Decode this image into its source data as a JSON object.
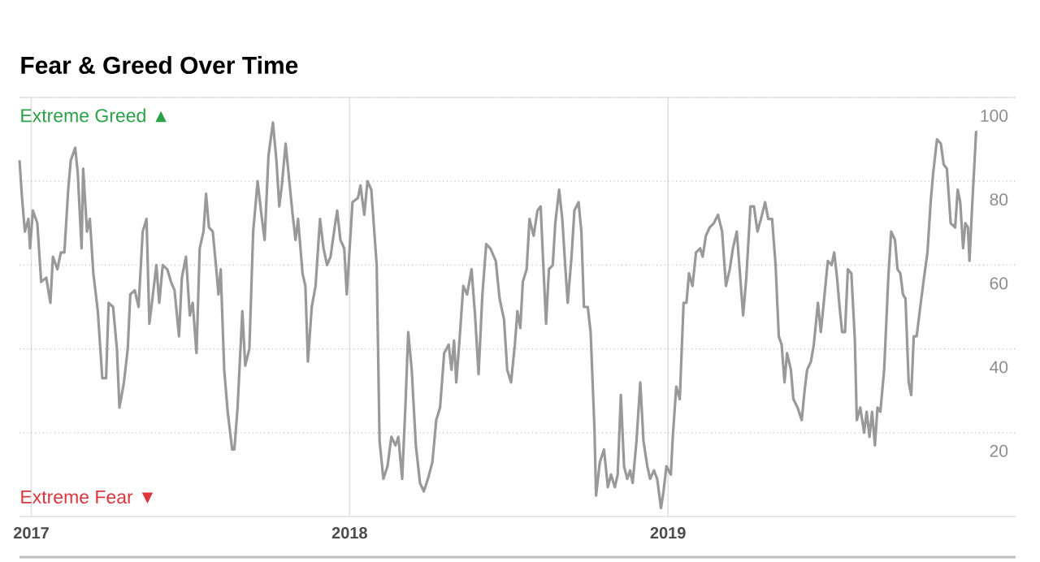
{
  "chart_data": {
    "type": "line",
    "title": "Fear & Greed Over Time",
    "annotations": [
      "Extreme Greed ▲",
      "Extreme Fear ▼"
    ],
    "xlim": [
      2016.963,
      2020.092
    ],
    "xticks": [
      2017,
      2018,
      2019
    ],
    "ylim": [
      0,
      100
    ],
    "yticks": [
      20,
      40,
      60,
      80,
      100
    ],
    "grid": true,
    "series": [
      {
        "color": "#999999",
        "x": [
          2016.963,
          2016.971,
          2016.98,
          2016.991,
          2016.996,
          2017.005,
          2017.019,
          2017.031,
          2017.047,
          2017.06,
          2017.068,
          2017.082,
          2017.093,
          2017.104,
          2017.116,
          2017.124,
          2017.138,
          2017.146,
          2017.158,
          2017.163,
          2017.175,
          2017.184,
          2017.195,
          2017.209,
          2017.223,
          2017.235,
          2017.243,
          2017.257,
          2017.269,
          2017.277,
          2017.291,
          2017.303,
          2017.311,
          2017.325,
          2017.337,
          2017.35,
          2017.362,
          2017.371,
          2017.379,
          2017.393,
          2017.402,
          2017.413,
          2017.427,
          2017.439,
          2017.45,
          2017.464,
          2017.473,
          2017.486,
          2017.498,
          2017.507,
          2017.519,
          2017.529,
          2017.541,
          2017.549,
          2017.558,
          2017.57,
          2017.58,
          2017.588,
          2017.595,
          2017.606,
          2017.617,
          2017.631,
          2017.638,
          2017.648,
          2017.663,
          2017.672,
          2017.685,
          2017.697,
          2017.711,
          2017.723,
          2017.733,
          2017.745,
          2017.759,
          2017.77,
          2017.779,
          2017.787,
          2017.799,
          2017.808,
          2017.821,
          2017.83,
          2017.838,
          2017.852,
          2017.861,
          2017.869,
          2017.881,
          2017.893,
          2017.907,
          2017.918,
          2017.929,
          2017.94,
          2017.953,
          2017.961,
          2017.971,
          2017.983,
          2017.991,
          2018.009,
          2018.026,
          2018.034,
          2018.046,
          2018.056,
          2018.068,
          2018.085,
          2018.094,
          2018.106,
          2018.119,
          2018.131,
          2018.144,
          2018.153,
          2018.165,
          2018.175,
          2018.184,
          2018.195,
          2018.208,
          2018.221,
          2018.233,
          2018.246,
          2018.26,
          2018.272,
          2018.284,
          2018.297,
          2018.311,
          2018.32,
          2018.328,
          2018.335,
          2018.345,
          2018.357,
          2018.369,
          2018.383,
          2018.394,
          2018.405,
          2018.417,
          2018.429,
          2018.442,
          2018.459,
          2018.471,
          2018.485,
          2018.495,
          2018.507,
          2018.519,
          2018.527,
          2018.536,
          2018.544,
          2018.556,
          2018.565,
          2018.578,
          2018.59,
          2018.6,
          2018.609,
          2018.617,
          2018.626,
          2018.638,
          2018.646,
          2018.658,
          2018.668,
          2018.677,
          2018.685,
          2018.697,
          2018.706,
          2018.719,
          2018.728,
          2018.736,
          2018.748,
          2018.757,
          2018.769,
          2018.774,
          2018.786,
          2018.799,
          2018.811,
          2018.821,
          2018.833,
          2018.842,
          2018.852,
          2018.862,
          2018.872,
          2018.881,
          2018.889,
          2018.901,
          2018.913,
          2018.923,
          2018.935,
          2018.944,
          2018.956,
          2018.966,
          2018.978,
          2018.986,
          2018.995,
          2019.009,
          2019.015,
          2019.026,
          2019.037,
          2019.049,
          2019.058,
          2019.066,
          2019.077,
          2019.088,
          2019.101,
          2019.109,
          2019.119,
          2019.131,
          2019.144,
          2019.157,
          2019.17,
          2019.182,
          2019.194,
          2019.204,
          2019.216,
          2019.224,
          2019.236,
          2019.246,
          2019.259,
          2019.27,
          2019.281,
          2019.292,
          2019.305,
          2019.315,
          2019.327,
          2019.338,
          2019.348,
          2019.357,
          2019.366,
          2019.374,
          2019.386,
          2019.394,
          2019.407,
          2019.42,
          2019.429,
          2019.437,
          2019.449,
          2019.458,
          2019.471,
          2019.48,
          2019.488,
          2019.502,
          2019.514,
          2019.522,
          2019.531,
          2019.539,
          2019.547,
          2019.556,
          2019.565,
          2019.576,
          2019.587,
          2019.593,
          2019.604,
          2019.616,
          2019.624,
          2019.633,
          2019.641,
          2019.65,
          2019.658,
          2019.667,
          2019.679,
          2019.692,
          2019.701,
          2019.713,
          2019.721,
          2019.73,
          2019.738,
          2019.746,
          2019.756,
          2019.764,
          2019.772,
          2019.781,
          2019.794,
          2019.806,
          2019.815,
          2019.825,
          2019.833,
          2019.845,
          2019.857,
          2019.866,
          2019.876,
          2019.888,
          2019.902,
          2019.91,
          2019.918,
          2019.927,
          2019.934,
          2019.942,
          2019.947,
          2019.956,
          2019.968
        ],
        "values": [
          85,
          76,
          68,
          71,
          64,
          73,
          70,
          56,
          57,
          51,
          62,
          59,
          63,
          63,
          78,
          85,
          88,
          82,
          64,
          83,
          68,
          71,
          58,
          49,
          33,
          33,
          51,
          50,
          40,
          26,
          32,
          40,
          53,
          54,
          50,
          68,
          71,
          46,
          51,
          60,
          51,
          60,
          59,
          56,
          54,
          43,
          57,
          62,
          48,
          51,
          39,
          64,
          68,
          77,
          69,
          68,
          60,
          53,
          59,
          35,
          25,
          16,
          16,
          26,
          49,
          36,
          40,
          68,
          80,
          72,
          66,
          86,
          94,
          85,
          74,
          79,
          89,
          82,
          72,
          66,
          71,
          58,
          55,
          37,
          50,
          55,
          71,
          64,
          60,
          62,
          69,
          73,
          66,
          64,
          53,
          75,
          76,
          79,
          72,
          80,
          78,
          60,
          18,
          9,
          12,
          19,
          17,
          19,
          9,
          26,
          44,
          35,
          17,
          8,
          6,
          9,
          13,
          23,
          26,
          39,
          41,
          35,
          42,
          32,
          42,
          55,
          53,
          59,
          48,
          34,
          53,
          65,
          64,
          61,
          52,
          47,
          35,
          32,
          41,
          49,
          45,
          56,
          59,
          71,
          67,
          73,
          74,
          59,
          46,
          59,
          60,
          70,
          78,
          71,
          60,
          51,
          62,
          73,
          75,
          68,
          50,
          50,
          44,
          21,
          5,
          13,
          16,
          7,
          10,
          7,
          10,
          29,
          12,
          9,
          11,
          8,
          18,
          32,
          18,
          12,
          9,
          11,
          9,
          2,
          6,
          12,
          10,
          19,
          31,
          28,
          51,
          51,
          58,
          55,
          63,
          64,
          62,
          67,
          69,
          70,
          72,
          68,
          55,
          59,
          64,
          68,
          60,
          48,
          57,
          74,
          74,
          68,
          71,
          75,
          71,
          71,
          60,
          43,
          41,
          32,
          39,
          35,
          28,
          26,
          23,
          30,
          35,
          37,
          41,
          51,
          44,
          50,
          61,
          60,
          63,
          57,
          50,
          44,
          44,
          59,
          58,
          42,
          23,
          26,
          20,
          25,
          19,
          25,
          17,
          26,
          25,
          35,
          57,
          68,
          66,
          59,
          58,
          53,
          52,
          32,
          29,
          43,
          43,
          51,
          58,
          63,
          75,
          82,
          90,
          89,
          84,
          83,
          70,
          69,
          78,
          75,
          64,
          70,
          69,
          61,
          75,
          92
        ]
      }
    ]
  }
}
